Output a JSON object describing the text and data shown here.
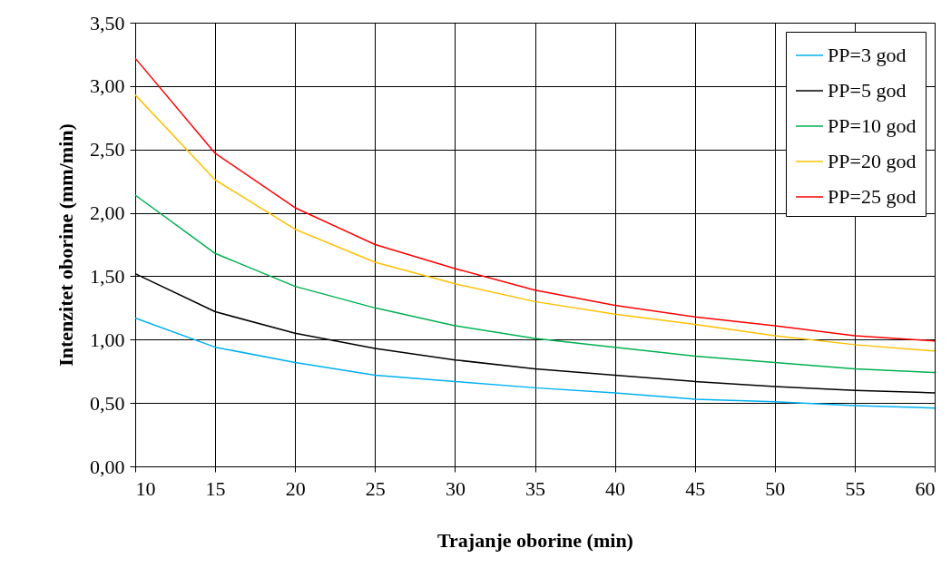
{
  "chart_data": {
    "type": "line",
    "xlabel": "Trajanje oborine (min)",
    "ylabel": "Intenzitet oborine (mm/min)",
    "x": [
      10,
      15,
      20,
      25,
      30,
      35,
      40,
      45,
      50,
      55,
      60
    ],
    "xlim": [
      10,
      60
    ],
    "xticks": [
      10,
      15,
      20,
      25,
      30,
      35,
      40,
      45,
      50,
      55,
      60
    ],
    "ylim": [
      0,
      3.5
    ],
    "yticks": [
      {
        "value": 0,
        "label": "0,00"
      },
      {
        "value": 0.5,
        "label": "0,50"
      },
      {
        "value": 1,
        "label": "1,00"
      },
      {
        "value": 1.5,
        "label": "1,50"
      },
      {
        "value": 2,
        "label": "2,00"
      },
      {
        "value": 2.5,
        "label": "2,50"
      },
      {
        "value": 3,
        "label": "3,00"
      },
      {
        "value": 3.5,
        "label": "3,50"
      }
    ],
    "grid": true,
    "legend": "top right",
    "marker": "none",
    "line_style": "solid",
    "series": [
      {
        "name": "PP=3 god",
        "color": "#00b0f0",
        "values": [
          1.17,
          0.94,
          0.82,
          0.72,
          0.67,
          0.62,
          0.58,
          0.53,
          0.51,
          0.48,
          0.46
        ]
      },
      {
        "name": "PP=5 god",
        "color": "#000000",
        "values": [
          1.52,
          1.22,
          1.05,
          0.93,
          0.84,
          0.77,
          0.72,
          0.67,
          0.63,
          0.6,
          0.58
        ]
      },
      {
        "name": "PP=10 god",
        "color": "#00b050",
        "values": [
          2.14,
          1.68,
          1.42,
          1.25,
          1.11,
          1.01,
          0.94,
          0.87,
          0.82,
          0.77,
          0.74
        ]
      },
      {
        "name": "PP=20 god",
        "color": "#ffc000",
        "values": [
          2.93,
          2.26,
          1.87,
          1.61,
          1.44,
          1.3,
          1.2,
          1.12,
          1.03,
          0.96,
          0.91
        ]
      },
      {
        "name": "PP=25 god",
        "color": "#ff0000",
        "values": [
          3.22,
          2.47,
          2.04,
          1.75,
          1.56,
          1.39,
          1.27,
          1.18,
          1.11,
          1.03,
          0.99
        ]
      }
    ]
  }
}
